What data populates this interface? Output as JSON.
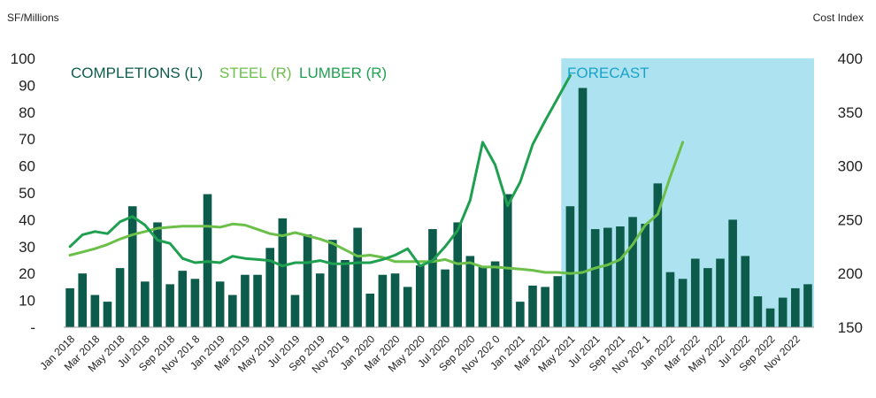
{
  "chart_data": {
    "type": "bar+line",
    "y_left_label": "SF/Millions",
    "y_right_label": "Cost Index",
    "ylim_left": [
      0,
      100
    ],
    "ylim_right": [
      150,
      400
    ],
    "y_left_ticks": [
      "-",
      "10",
      "20",
      "30",
      "40",
      "50",
      "60",
      "70",
      "80",
      "90",
      "100"
    ],
    "y_right_ticks": [
      "150",
      "200",
      "250",
      "300",
      "350",
      "400"
    ],
    "forecast_label": "FORECAST",
    "forecast_start_index": 40,
    "x_labels": [
      "Jan 2018",
      "Mar 2018",
      "May 2018",
      "Jul 2018",
      "Sep 2018",
      "Nov 2018",
      "Jan 2019",
      "Mar 2019",
      "May 2019",
      "Jul 2019",
      "Sep 2019",
      "Nov 2019",
      "Jan 2020",
      "Mar 2020",
      "May 2020",
      "Jul 2020",
      "Sep 2020",
      "Nov 2020",
      "Jan 2021",
      "Mar 2021",
      "May 2021",
      "Jul 2021",
      "Sep 2021",
      "Nov 2021",
      "Jan 2022",
      "Mar 2022",
      "May 2022",
      "Jul 2022",
      "Sep 2022",
      "Nov 2022"
    ],
    "x_label_display": [
      "Jan 2018",
      "Mar 2018",
      "May 2018",
      "Jul 2018",
      "Sep 2018",
      "Nov 201 8",
      "Jan 2019",
      "Mar 2019",
      "May 2019",
      "Jul 2019",
      "Sep 2019",
      "Nov 201 9",
      "Jan 2020",
      "Mar 2020",
      "May 2020",
      "Jul 2020",
      "Sep 2020",
      "Nov 202 0",
      "Jan 2021",
      "Mar 2021",
      "May 2021",
      "Jul 2021",
      "Sep 2021",
      "Nov 202 1",
      "Jan 2022",
      "Mar 2022",
      "May 2022",
      "Jul 2022",
      "Sep 2022",
      "Nov 2022"
    ],
    "colors": {
      "completions": "#0d5c4b",
      "steel": "#6cc04a",
      "lumber": "#1fa050",
      "forecast_bg": "#ade3f0",
      "forecast_text": "#1aa3c8",
      "legend_completions": "#0d5c4b"
    },
    "series": [
      {
        "name": "COMPLETIONS (L)",
        "axis": "left",
        "kind": "bar",
        "values": [
          14.5,
          20,
          12,
          9.5,
          22,
          45,
          17,
          39,
          16,
          21,
          18,
          49.5,
          17,
          12,
          19.5,
          19.5,
          29.5,
          40.5,
          12,
          34.5,
          20,
          32.5,
          25,
          37,
          12.5,
          19.5,
          20,
          15,
          23,
          36.5,
          21.5,
          39,
          26.5,
          22.5,
          24.5,
          49.5,
          9.5,
          15.5,
          15,
          19,
          45,
          89,
          36.5,
          37,
          37.5,
          41,
          38.5,
          53.5,
          20.5,
          18,
          25.5,
          22,
          25.5,
          40,
          26.5,
          11.5,
          7,
          11,
          14.5,
          16
        ]
      },
      {
        "name": "STEEL (R)",
        "axis": "right",
        "kind": "line",
        "values": [
          217,
          220,
          223,
          227,
          232,
          236,
          239,
          242,
          243,
          244,
          244,
          244,
          243,
          246,
          245,
          241,
          237,
          235,
          238,
          235,
          232,
          228,
          222,
          216,
          217,
          215,
          211,
          211,
          211,
          211,
          213,
          209,
          210,
          206,
          206,
          205,
          204,
          203,
          201,
          201,
          200,
          201,
          205,
          208,
          213,
          227,
          245,
          255,
          290,
          322
        ]
      },
      {
        "name": "LUMBER (R)",
        "axis": "right",
        "kind": "line",
        "values": [
          225,
          236,
          239,
          237,
          248,
          253,
          245,
          231,
          228,
          214,
          210,
          211,
          210,
          216,
          214,
          213,
          212,
          207,
          210,
          210,
          212,
          209,
          209,
          210,
          210,
          213,
          217,
          223,
          207,
          212,
          225,
          240,
          268,
          322,
          301,
          263,
          285,
          320,
          342,
          363,
          384
        ]
      }
    ]
  }
}
